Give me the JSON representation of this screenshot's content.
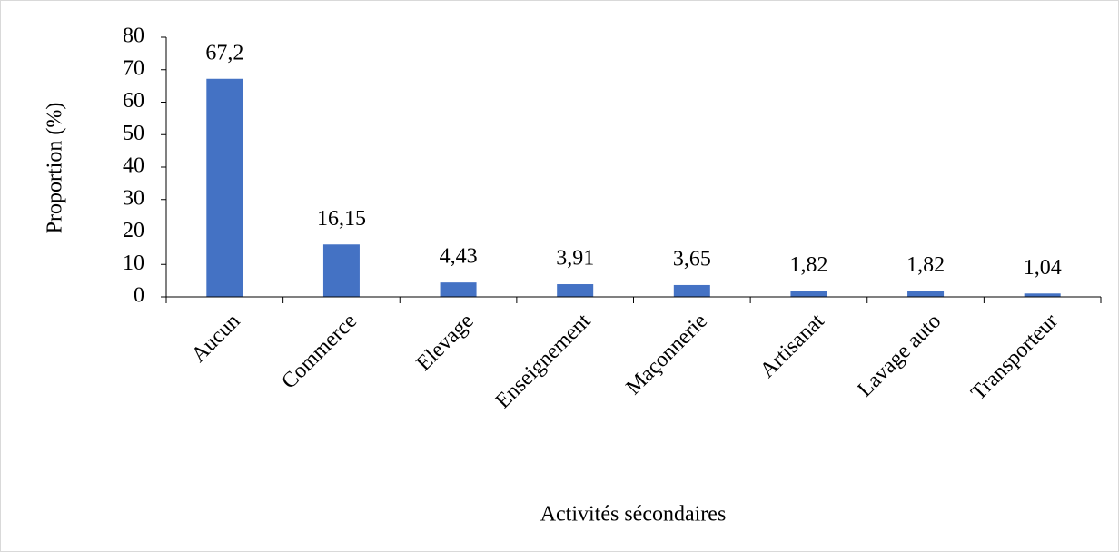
{
  "chart_data": {
    "type": "bar",
    "x_label": "Activités sécondaires",
    "y_label": "Proportion (%)",
    "categories": [
      "Aucun",
      "Commerce",
      "Elevage",
      "Enseignement",
      "Maçonnerie",
      "Artisanat",
      "Lavage auto",
      "Transporteur"
    ],
    "values": [
      67.2,
      16.15,
      4.43,
      3.91,
      3.65,
      1.82,
      1.82,
      1.04
    ],
    "value_labels": [
      "67,2",
      "16,15",
      "4,43",
      "3,91",
      "3,65",
      "1,82",
      "1,82",
      "1,04"
    ],
    "color": "#4472c4",
    "ylim": [
      0,
      80
    ],
    "yticks": [
      0,
      10,
      20,
      30,
      40,
      50,
      60,
      70,
      80
    ],
    "grid": false
  }
}
